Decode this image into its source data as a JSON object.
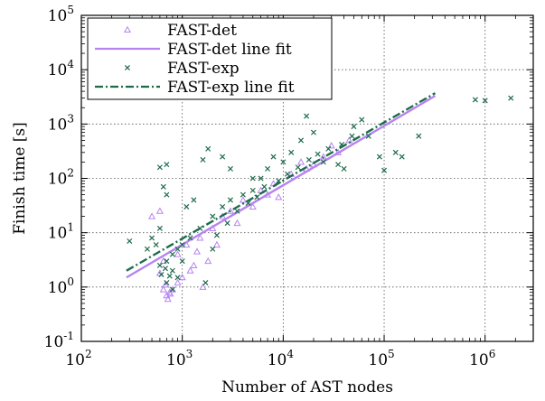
{
  "chart_data": {
    "type": "scatter",
    "xlabel": "Number of AST nodes",
    "ylabel": "Finish time [s]",
    "xscale": "log",
    "yscale": "log",
    "xlim": [
      100,
      3000000
    ],
    "ylim": [
      0.1,
      100000
    ],
    "x_ticks": [
      {
        "base": "10",
        "exp": "2"
      },
      {
        "base": "10",
        "exp": "3"
      },
      {
        "base": "10",
        "exp": "4"
      },
      {
        "base": "10",
        "exp": "5"
      },
      {
        "base": "10",
        "exp": "6"
      }
    ],
    "y_ticks": [
      {
        "base": "10",
        "exp": "-1"
      },
      {
        "base": "10",
        "exp": "0"
      },
      {
        "base": "10",
        "exp": "1"
      },
      {
        "base": "10",
        "exp": "2"
      },
      {
        "base": "10",
        "exp": "3"
      },
      {
        "base": "10",
        "exp": "4"
      },
      {
        "base": "10",
        "exp": "5"
      }
    ],
    "grid": "dotted",
    "legend_position": "top-left",
    "series": [
      {
        "name": "FAST-det",
        "kind": "scatter",
        "marker": "triangle",
        "color": "#b784f0",
        "points": [
          [
            700,
            0.7
          ],
          [
            750,
            0.8
          ],
          [
            800,
            0.9
          ],
          [
            900,
            1.2
          ],
          [
            1000,
            1.5
          ],
          [
            1200,
            2.0
          ],
          [
            600,
            1.8
          ],
          [
            650,
            3.0
          ],
          [
            900,
            4.0
          ],
          [
            1100,
            6.0
          ],
          [
            1500,
            8.0
          ],
          [
            2000,
            12.0
          ],
          [
            2500,
            20.0
          ],
          [
            3000,
            25.0
          ],
          [
            4000,
            40.0
          ],
          [
            6000,
            60.0
          ],
          [
            8000,
            80.0
          ],
          [
            12000,
            120.0
          ],
          [
            17000,
            150.0
          ],
          [
            25000,
            250.0
          ],
          [
            35000,
            300.0
          ],
          [
            600,
            25.0
          ],
          [
            500,
            20.0
          ],
          [
            650,
            0.9
          ],
          [
            720,
            0.6
          ],
          [
            760,
            0.75
          ],
          [
            680,
            1.1
          ],
          [
            1600,
            1.0
          ],
          [
            1800,
            3.0
          ],
          [
            2200,
            6.0
          ],
          [
            3500,
            15.0
          ],
          [
            5000,
            30.0
          ],
          [
            7000,
            50.0
          ],
          [
            9000,
            45.0
          ],
          [
            15000,
            200.0
          ],
          [
            20000,
            180.0
          ],
          [
            30000,
            400.0
          ],
          [
            45000,
            500.0
          ],
          [
            1300,
            2.5
          ],
          [
            1400,
            4.5
          ]
        ]
      },
      {
        "name": "FAST-det line fit",
        "kind": "line",
        "color": "#b784f0",
        "dash": "solid",
        "points": [
          [
            280,
            1.5
          ],
          [
            320000,
            3300
          ]
        ]
      },
      {
        "name": "FAST-exp",
        "kind": "scatter",
        "marker": "x",
        "color": "#1e6b4a",
        "points": [
          [
            800000,
            2800
          ],
          [
            1000000,
            2700
          ],
          [
            1800000,
            3000
          ],
          [
            220000,
            600
          ],
          [
            150000,
            250
          ],
          [
            90000,
            250
          ],
          [
            100000,
            140
          ],
          [
            130000,
            300
          ],
          [
            70000,
            600
          ],
          [
            50000,
            900
          ],
          [
            60000,
            1200
          ],
          [
            17000,
            1400
          ],
          [
            20000,
            700
          ],
          [
            15000,
            500
          ],
          [
            12000,
            300
          ],
          [
            10000,
            200
          ],
          [
            8000,
            250
          ],
          [
            7000,
            150
          ],
          [
            6000,
            100
          ],
          [
            5000,
            60
          ],
          [
            4000,
            50
          ],
          [
            3000,
            40
          ],
          [
            2500,
            30
          ],
          [
            2000,
            20
          ],
          [
            1500,
            12
          ],
          [
            1200,
            8
          ],
          [
            1000,
            6
          ],
          [
            900,
            5
          ],
          [
            800,
            4
          ],
          [
            700,
            3
          ],
          [
            600,
            2.5
          ],
          [
            1600,
            220
          ],
          [
            1800,
            350
          ],
          [
            2500,
            250
          ],
          [
            700,
            180
          ],
          [
            600,
            160
          ],
          [
            700,
            50
          ],
          [
            650,
            70
          ],
          [
            600,
            12
          ],
          [
            550,
            6
          ],
          [
            500,
            8
          ],
          [
            450,
            5
          ],
          [
            300,
            7
          ],
          [
            700,
            1.2
          ],
          [
            750,
            1.6
          ],
          [
            800,
            2
          ],
          [
            1000,
            3
          ],
          [
            3000,
            150
          ],
          [
            5000,
            100
          ],
          [
            9000,
            90
          ],
          [
            25000,
            200
          ],
          [
            40000,
            150
          ],
          [
            35000,
            180
          ],
          [
            1100,
            30
          ],
          [
            1300,
            40
          ],
          [
            1700,
            1.2
          ],
          [
            2000,
            5
          ],
          [
            2200,
            9
          ],
          [
            2800,
            15
          ],
          [
            3500,
            25
          ],
          [
            4500,
            35
          ],
          [
            5500,
            45
          ],
          [
            6500,
            70
          ],
          [
            11000,
            120
          ],
          [
            14000,
            160
          ],
          [
            18000,
            220
          ],
          [
            22000,
            280
          ],
          [
            28000,
            350
          ],
          [
            38000,
            420
          ],
          [
            48000,
            600
          ],
          [
            800,
            0.9
          ],
          [
            900,
            1.5
          ],
          [
            620,
            1.7
          ],
          [
            680,
            2.2
          ]
        ]
      },
      {
        "name": "FAST-exp line fit",
        "kind": "line",
        "color": "#1e6b4a",
        "dash": "dashdot",
        "points": [
          [
            280,
            2.0
          ],
          [
            320000,
            3700
          ]
        ]
      }
    ]
  }
}
